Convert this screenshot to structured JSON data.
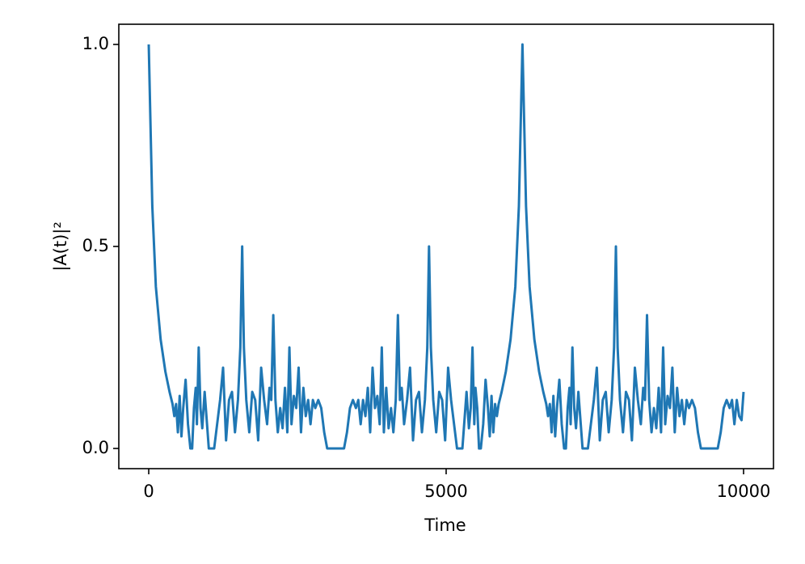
{
  "chart_data": {
    "type": "line",
    "x_label": "Time",
    "y_label": "|A(t)|²",
    "color": "#1f77b4",
    "x": [
      0,
      60,
      120,
      200,
      280,
      350,
      400,
      430,
      460,
      490,
      520,
      550,
      580,
      620,
      660,
      700,
      730,
      760,
      790,
      810,
      840,
      870,
      900,
      940,
      980,
      1010,
      1100,
      1150,
      1200,
      1250,
      1300,
      1350,
      1400,
      1450,
      1500,
      1540,
      1571,
      1600,
      1640,
      1690,
      1740,
      1790,
      1840,
      1890,
      1940,
      1990,
      2030,
      2060,
      2094,
      2130,
      2170,
      2210,
      2250,
      2290,
      2330,
      2365,
      2400,
      2440,
      2480,
      2520,
      2560,
      2600,
      2640,
      2680,
      2720,
      2760,
      2800,
      2850,
      2900,
      2950,
      3000,
      3142,
      3283,
      3333,
      3383,
      3433,
      3483,
      3523,
      3563,
      3603,
      3643,
      3683,
      3723,
      3763,
      3803,
      3843,
      3883,
      3918,
      3953,
      3993,
      4033,
      4073,
      4113,
      4153,
      4189,
      4223,
      4253,
      4293,
      4343,
      4393,
      4443,
      4493,
      4543,
      4593,
      4643,
      4683,
      4712,
      4743,
      4783,
      4833,
      4883,
      4933,
      4983,
      5033,
      5083,
      5133,
      5183,
      5273,
      5303,
      5343,
      5383,
      5413,
      5443,
      5473,
      5493,
      5523,
      5553,
      5583,
      5623,
      5663,
      5703,
      5733,
      5763,
      5793,
      5823,
      5853,
      5883,
      5933,
      6003,
      6083,
      6163,
      6223,
      6283,
      6343,
      6403,
      6483,
      6563,
      6633,
      6683,
      6713,
      6743,
      6773,
      6803,
      6833,
      6863,
      6903,
      6943,
      6983,
      7013,
      7043,
      7073,
      7093,
      7123,
      7153,
      7183,
      7223,
      7263,
      7293,
      7383,
      7433,
      7483,
      7533,
      7583,
      7633,
      7683,
      7733,
      7783,
      7823,
      7854,
      7883,
      7923,
      7973,
      8023,
      8073,
      8123,
      8173,
      8223,
      8273,
      8313,
      8343,
      8377,
      8413,
      8453,
      8493,
      8533,
      8573,
      8613,
      8648,
      8683,
      8723,
      8763,
      8803,
      8843,
      8883,
      8923,
      8963,
      9003,
      9043,
      9083,
      9133,
      9183,
      9233,
      9283,
      9425,
      9566,
      9616,
      9666,
      9716,
      9766,
      9806,
      9846,
      9886,
      9926,
      9966,
      10000
    ],
    "values": [
      1,
      0.6,
      0.4,
      0.27,
      0.19,
      0.14,
      0.11,
      0.08,
      0.11,
      0.04,
      0.13,
      0.03,
      0.1,
      0.17,
      0.06,
      0,
      0,
      0.1,
      0.15,
      0.06,
      0.25,
      0.1,
      0.05,
      0.14,
      0.06,
      0,
      0,
      0.06,
      0.12,
      0.2,
      0.02,
      0.12,
      0.14,
      0.04,
      0.12,
      0.25,
      0.5,
      0.25,
      0.12,
      0.04,
      0.14,
      0.12,
      0.02,
      0.2,
      0.12,
      0.06,
      0.15,
      0.12,
      0.33,
      0.12,
      0.04,
      0.1,
      0.05,
      0.15,
      0.04,
      0.25,
      0.06,
      0.13,
      0.1,
      0.2,
      0.04,
      0.15,
      0.08,
      0.12,
      0.06,
      0.12,
      0.1,
      0.12,
      0.1,
      0.04,
      0,
      0,
      0,
      0.04,
      0.1,
      0.12,
      0.1,
      0.12,
      0.06,
      0.12,
      0.08,
      0.15,
      0.04,
      0.2,
      0.1,
      0.13,
      0.06,
      0.25,
      0.04,
      0.15,
      0.05,
      0.1,
      0.04,
      0.12,
      0.33,
      0.12,
      0.15,
      0.06,
      0.12,
      0.2,
      0.02,
      0.12,
      0.14,
      0.04,
      0.12,
      0.25,
      0.5,
      0.25,
      0.12,
      0.04,
      0.14,
      0.12,
      0.02,
      0.2,
      0.12,
      0.06,
      0,
      0,
      0.06,
      0.14,
      0.05,
      0.1,
      0.25,
      0.06,
      0.15,
      0.1,
      0,
      0,
      0.06,
      0.17,
      0.1,
      0.03,
      0.13,
      0.04,
      0.11,
      0.08,
      0.11,
      0.14,
      0.19,
      0.27,
      0.4,
      0.6,
      1,
      0.6,
      0.4,
      0.27,
      0.19,
      0.14,
      0.11,
      0.08,
      0.11,
      0.04,
      0.13,
      0.03,
      0.1,
      0.17,
      0.06,
      0,
      0,
      0.1,
      0.15,
      0.06,
      0.25,
      0.1,
      0.05,
      0.14,
      0.06,
      0,
      0,
      0.06,
      0.12,
      0.2,
      0.02,
      0.12,
      0.14,
      0.04,
      0.12,
      0.25,
      0.5,
      0.25,
      0.12,
      0.04,
      0.14,
      0.12,
      0.02,
      0.2,
      0.12,
      0.06,
      0.15,
      0.12,
      0.33,
      0.12,
      0.04,
      0.1,
      0.05,
      0.15,
      0.04,
      0.25,
      0.06,
      0.13,
      0.1,
      0.2,
      0.04,
      0.15,
      0.08,
      0.12,
      0.06,
      0.12,
      0.1,
      0.12,
      0.1,
      0.04,
      0,
      0,
      0,
      0.04,
      0.1,
      0.12,
      0.1,
      0.12,
      0.06,
      0.12,
      0.08,
      0.07,
      0.14
    ],
    "xlim": [
      -503,
      10503
    ],
    "ylim": [
      -0.05,
      1.05
    ],
    "xticks": [
      0,
      5000,
      10000
    ],
    "yticks": [
      {
        "value": 0,
        "label": "0.0"
      },
      {
        "value": 0.5,
        "label": "0.5"
      },
      {
        "value": 1,
        "label": "1.0"
      }
    ]
  }
}
